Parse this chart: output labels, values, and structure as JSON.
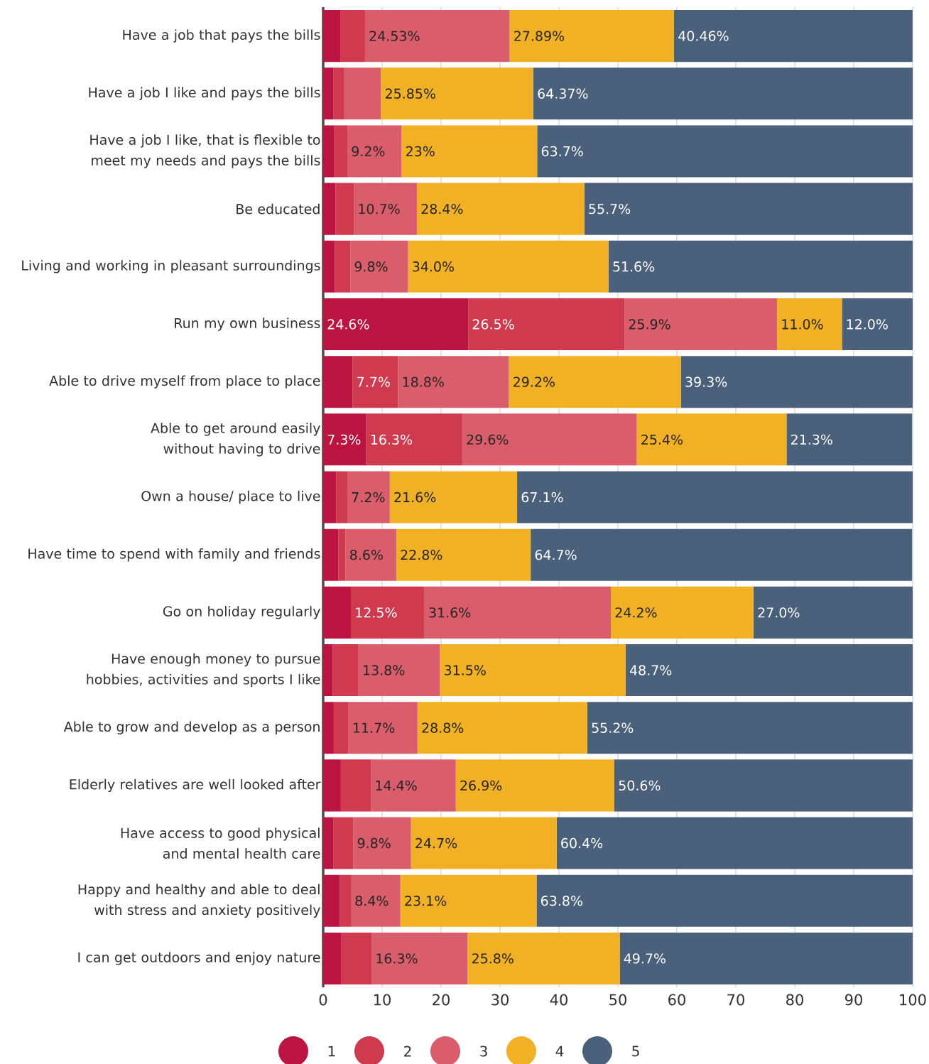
{
  "chart_data": {
    "type": "bar",
    "orientation": "horizontal",
    "stacked": true,
    "grid": "x",
    "legend": "bottom",
    "categories": [
      "Have a job that pays the bills",
      "Have a job I like and pays the bills",
      "Have a job I like, that is flexible to meet my needs and pays the bills",
      "Be educated",
      "Living and working in pleasant surroundings",
      "Run my own business",
      "Able to drive myself from place to place",
      "Able to get around easily without having to drive",
      "Own a house/ place to live",
      "Have time to spend with family and friends",
      "Go on holiday regularly",
      "Have enough money to pursue hobbies, activities and sports I like",
      "Able to grow and develop as a person",
      "Elderly relatives are well looked after",
      "Have access to good physical and mental health care",
      "Happy and healthy and able to deal with stress and anxiety positively",
      "I can get outdoors and enjoy nature"
    ],
    "xlim": [
      0,
      100
    ],
    "xticks": [
      0,
      10,
      20,
      30,
      40,
      50,
      60,
      70,
      80,
      90,
      100
    ],
    "series": [
      {
        "name": "1",
        "color": "#bc1440",
        "values": [
          2.9,
          1.7,
          1.9,
          2.1,
          2.0,
          24.6,
          5.0,
          7.3,
          2.2,
          2.6,
          4.7,
          1.6,
          1.8,
          3.0,
          1.7,
          2.8,
          3.1
        ],
        "value_labels": [
          null,
          null,
          null,
          null,
          null,
          "24.6%",
          null,
          "7.3%",
          null,
          null,
          null,
          null,
          null,
          null,
          null,
          null,
          null
        ]
      },
      {
        "name": "2",
        "color": "#cf3a4e",
        "values": [
          4.2,
          1.9,
          2.2,
          3.1,
          2.6,
          26.5,
          7.7,
          16.3,
          1.9,
          1.2,
          12.5,
          4.4,
          2.5,
          5.1,
          3.4,
          1.9,
          5.1
        ],
        "value_labels": [
          null,
          null,
          null,
          null,
          null,
          "26.5%",
          "7.7%",
          "16.3%",
          null,
          null,
          "12.5%",
          null,
          null,
          null,
          null,
          null,
          null
        ]
      },
      {
        "name": "3",
        "color": "#d95d6b",
        "values": [
          24.53,
          6.2,
          9.2,
          10.7,
          9.8,
          25.9,
          18.8,
          29.6,
          7.2,
          8.6,
          31.6,
          13.8,
          11.7,
          14.4,
          9.8,
          8.4,
          16.3
        ],
        "value_labels": [
          "24.53%",
          null,
          "9.2%",
          "10.7%",
          "9.8%",
          "25.9%",
          "18.8%",
          "29.6%",
          "7.2%",
          "8.6%",
          "31.6%",
          "13.8%",
          "11.7%",
          "14.4%",
          "9.8%",
          "8.4%",
          "16.3%"
        ]
      },
      {
        "name": "4",
        "color": "#f2b124",
        "values": [
          27.89,
          25.85,
          23,
          28.4,
          34.0,
          11.0,
          29.2,
          25.4,
          21.6,
          22.8,
          24.2,
          31.5,
          28.8,
          26.9,
          24.7,
          23.1,
          25.8
        ],
        "value_labels": [
          "27.89%",
          "25.85%",
          "23%",
          "28.4%",
          "34.0%",
          "11.0%",
          "29.2%",
          "25.4%",
          "21.6%",
          "22.8%",
          "24.2%",
          "31.5%",
          "28.8%",
          "26.9%",
          "24.7%",
          "23.1%",
          "25.8%"
        ]
      },
      {
        "name": "5",
        "color": "#4a607b",
        "values": [
          40.46,
          64.37,
          63.7,
          55.7,
          51.6,
          12.0,
          39.3,
          21.3,
          67.1,
          64.7,
          27.0,
          48.7,
          55.2,
          50.6,
          60.4,
          63.8,
          49.7
        ],
        "value_labels": [
          "40.46%",
          "64.37%",
          "63.7%",
          "55.7%",
          "51.6%",
          "12.0%",
          "39.3%",
          "21.3%",
          "67.1%",
          "64.7%",
          "27.0%",
          "48.7%",
          "55.2%",
          "50.6%",
          "60.4%",
          "63.8%",
          "49.7%"
        ]
      }
    ]
  }
}
